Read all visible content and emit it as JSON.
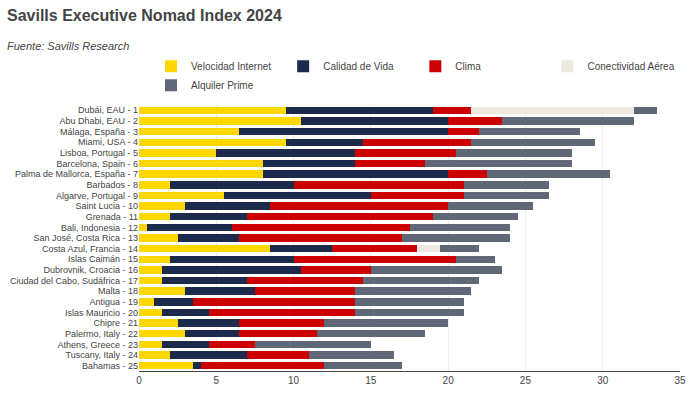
{
  "chart_data": {
    "type": "bar",
    "orientation": "horizontal",
    "stacked": true,
    "title": "Savills Executive Nomad Index 2024",
    "subtitle": "Fuente: Savills Research",
    "categories": [
      "Dubái, EAU - 1",
      "Abu Dhabi, EAU - 2",
      "Málaga, España - 3",
      "Miami, USA - 4",
      "Lisboa, Portugal - 5",
      "Barcelona, Spain - 6",
      "Palma de Mallorca, España - 7",
      "Barbados - 8",
      "Algarve, Portugal - 9",
      "Saint Lucia - 10",
      "Grenada - 11",
      "Bali, Indonesia - 12",
      "San José, Costa Rica - 13",
      "Costa Azul, Francia - 14",
      "Islas Caimán - 15",
      "Dubrovnik, Croacia - 16",
      "Ciudad del Cabo, Sudáfrica - 17",
      "Malta - 18",
      "Antigua - 19",
      "Islas Mauricio - 20",
      "Chipre - 21",
      "Palermo, Italy - 22",
      "Athens, Greece - 23",
      "Tuscany, Italy - 24",
      "Bahamas - 25"
    ],
    "series": [
      {
        "name": "Velocidad Internet",
        "color": "#FFD700",
        "values": [
          9.5,
          10.5,
          6.5,
          9.5,
          5.0,
          8.0,
          8.0,
          2.0,
          5.5,
          3.0,
          2.0,
          0.5,
          2.5,
          8.5,
          2.0,
          1.5,
          1.5,
          3.0,
          1.0,
          1.5,
          2.5,
          3.0,
          1.5,
          2.0,
          3.5
        ]
      },
      {
        "name": "Calidad de Vida",
        "color": "#1C2B4B",
        "values": [
          9.5,
          9.5,
          13.5,
          5.0,
          9.0,
          6.0,
          12.0,
          8.0,
          9.5,
          5.5,
          5.0,
          5.5,
          4.0,
          4.0,
          8.0,
          9.0,
          5.5,
          4.5,
          2.5,
          3.0,
          4.0,
          3.5,
          3.0,
          5.0,
          0.5
        ]
      },
      {
        "name": "Clima",
        "color": "#CC0000",
        "values": [
          2.5,
          3.5,
          2.0,
          7.0,
          6.5,
          4.5,
          2.5,
          11.0,
          6.0,
          11.5,
          12.0,
          11.5,
          10.5,
          5.5,
          10.5,
          4.5,
          7.5,
          6.5,
          10.5,
          9.5,
          5.5,
          5.0,
          3.0,
          4.0,
          8.0
        ]
      },
      {
        "name": "Conectividad Aérea",
        "color": "#EDE8E0",
        "values": [
          10.5,
          0.0,
          0.0,
          0.0,
          0.0,
          0.0,
          0.0,
          0.0,
          0.0,
          0.0,
          0.0,
          0.0,
          0.0,
          1.5,
          0.0,
          0.0,
          0.0,
          0.0,
          0.0,
          0.0,
          0.0,
          0.0,
          0.0,
          0.0,
          0.0
        ]
      },
      {
        "name": "Alquiler Prime",
        "color": "#606878",
        "values": [
          1.5,
          8.5,
          6.5,
          8.0,
          7.5,
          9.5,
          8.0,
          5.5,
          5.5,
          5.5,
          5.5,
          6.5,
          7.0,
          2.5,
          2.5,
          8.5,
          7.5,
          7.5,
          7.0,
          7.0,
          8.0,
          7.0,
          7.5,
          5.5,
          5.0
        ]
      }
    ],
    "xlim": [
      0,
      35
    ],
    "xticks": [
      0,
      5,
      10,
      15,
      20,
      25,
      30,
      35
    ],
    "grid": true,
    "legend": "upper right"
  }
}
